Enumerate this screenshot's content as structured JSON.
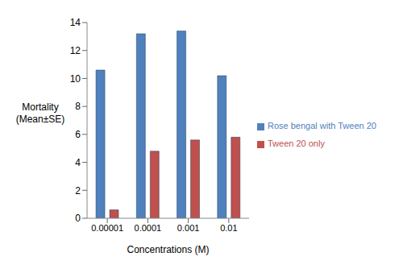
{
  "chart_data": {
    "type": "bar",
    "x_label": "Concentrations (M)",
    "y_label": "Mortality (Mean±SE)",
    "categories": [
      "0.00001",
      "0.0001",
      "0.001",
      "0.01"
    ],
    "series": [
      {
        "name": "Rose bengal with Tween 20",
        "color": "#4f81bd",
        "values": [
          10.6,
          13.2,
          13.4,
          10.2
        ]
      },
      {
        "name": "Tween 20 only",
        "color": "#c0504d",
        "values": [
          0.6,
          4.8,
          5.6,
          5.8
        ]
      }
    ],
    "ylim": [
      0,
      14
    ],
    "yticks": [
      0,
      2,
      4,
      6,
      8,
      10,
      12,
      14
    ],
    "grid": false,
    "legend": "right"
  }
}
